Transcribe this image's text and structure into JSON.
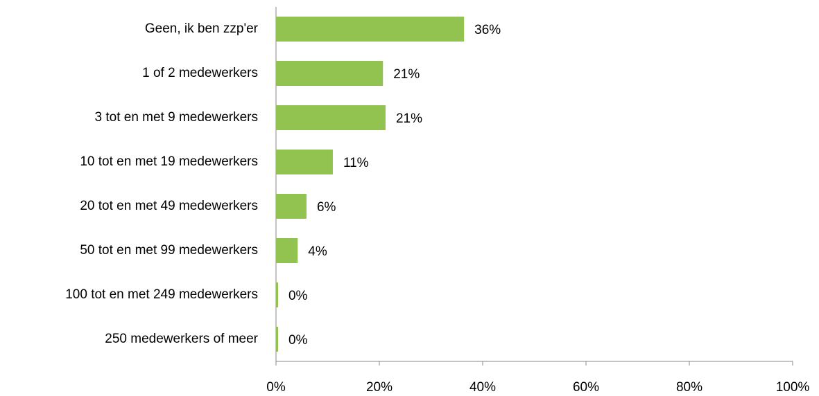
{
  "chart_data": {
    "type": "hbar",
    "categories": [
      "Geen, ik ben zzp'er",
      "1 of 2 medewerkers",
      "3 tot en met 9 medewerkers",
      "10 tot en met 19 medewerkers",
      "20 tot en met 49 medewerkers",
      "50 tot en met 99 medewerkers",
      "100 tot en met 249 medewerkers",
      "250 medewerkers of meer"
    ],
    "values": [
      36.4,
      20.7,
      21.2,
      11.0,
      5.9,
      4.2,
      0.4,
      0.4
    ],
    "value_labels": [
      "36%",
      "21%",
      "21%",
      "11%",
      "6%",
      "4%",
      "0%",
      "0%"
    ],
    "color": "#92c24f",
    "xlim": [
      0,
      100
    ],
    "xticks": [
      {
        "value": 0,
        "label": "0%"
      },
      {
        "value": 20,
        "label": "20%"
      },
      {
        "value": 40,
        "label": "40%"
      },
      {
        "value": 60,
        "label": "60%"
      },
      {
        "value": 80,
        "label": "80%"
      },
      {
        "value": 100,
        "label": "100%"
      }
    ],
    "grid": false
  }
}
